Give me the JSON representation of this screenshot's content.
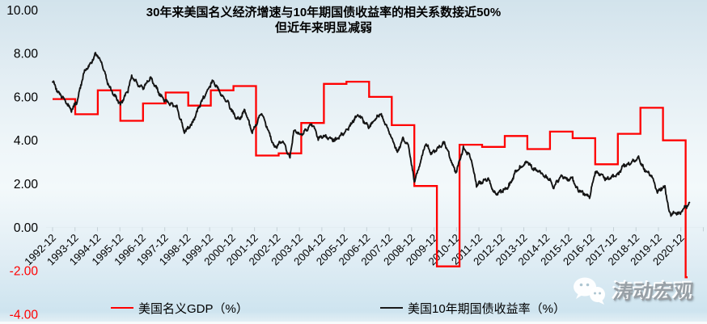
{
  "title": {
    "line1": "30年来美国名义经济增速与10年期国债收益率的相关系数接近50%",
    "line2": "但近年来明显减弱"
  },
  "legend": [
    {
      "label": "美国名义GDP（%）",
      "color": "#ff0000"
    },
    {
      "label": "美国10年期国债收益率（%）",
      "color": "#1a1a1a"
    }
  ],
  "watermark": {
    "icon": "wechat-icon",
    "text": "涛动宏观"
  },
  "chart_data": {
    "type": "line",
    "title": "30年来美国名义经济增速与10年期国债收益率的相关系数接近50% 但近年来明显减弱",
    "grid": "off",
    "legend_position": "bottom",
    "y_axis": {
      "range": [
        -4,
        10
      ],
      "tick_step": 2,
      "ticks": [
        {
          "label": "10.00",
          "value": 10
        },
        {
          "label": "8.00",
          "value": 8
        },
        {
          "label": "6.00",
          "value": 6
        },
        {
          "label": "4.00",
          "value": 4
        },
        {
          "label": "2.00",
          "value": 2
        },
        {
          "label": "0.00",
          "value": 0
        },
        {
          "label": "-2.00",
          "value": -2
        },
        {
          "label": "-4.00",
          "value": -4
        }
      ],
      "positive_tick_color": "#000000",
      "negative_tick_color": "#ff0000"
    },
    "x_axis": {
      "labels": [
        "1992-12",
        "1993-12",
        "1994-12",
        "1995-12",
        "1996-12",
        "1997-12",
        "1998-12",
        "1999-12",
        "2000-12",
        "2001-12",
        "2002-12",
        "2003-12",
        "2004-12",
        "2005-12",
        "2006-12",
        "2007-12",
        "2008-12",
        "2009-12",
        "2010-12",
        "2011-12",
        "2012-12",
        "2013-12",
        "2014-12",
        "2015-12",
        "2016-12",
        "2017-12",
        "2018-12",
        "2019-12",
        "2020-12"
      ],
      "label_rotation_deg": 45
    },
    "series": [
      {
        "name": "美国名义GDP（%）",
        "style": "step",
        "color": "#ff0000",
        "years": [
          1992,
          1993,
          1994,
          1995,
          1996,
          1997,
          1998,
          1999,
          2000,
          2001,
          2002,
          2003,
          2004,
          2005,
          2006,
          2007,
          2008,
          2009,
          2010,
          2011,
          2012,
          2013,
          2014,
          2015,
          2016,
          2017,
          2018,
          2019,
          2020
        ],
        "values": [
          5.9,
          5.2,
          6.3,
          4.9,
          5.7,
          6.2,
          5.6,
          6.3,
          6.5,
          3.3,
          3.4,
          4.8,
          6.6,
          6.7,
          6.0,
          4.7,
          1.9,
          -1.8,
          3.8,
          3.7,
          4.2,
          3.6,
          4.4,
          4.1,
          2.9,
          4.3,
          5.5,
          4.0,
          -2.3
        ]
      },
      {
        "name": "美国10年期国债收益率（%）",
        "style": "noisy-line",
        "color": "#141414",
        "x_unit": "months since 1992-12",
        "points": [
          [
            0,
            6.75
          ],
          [
            3,
            6.2
          ],
          [
            6,
            5.9
          ],
          [
            10,
            5.4
          ],
          [
            13,
            5.8
          ],
          [
            17,
            7.2
          ],
          [
            20,
            7.5
          ],
          [
            23,
            8.0
          ],
          [
            26,
            7.6
          ],
          [
            30,
            6.45
          ],
          [
            36,
            5.65
          ],
          [
            40,
            6.3
          ],
          [
            42,
            6.95
          ],
          [
            45,
            6.6
          ],
          [
            48,
            6.4
          ],
          [
            52,
            6.9
          ],
          [
            57,
            6.1
          ],
          [
            60,
            5.8
          ],
          [
            64,
            5.6
          ],
          [
            66,
            5.5
          ],
          [
            70,
            4.4
          ],
          [
            74,
            4.75
          ],
          [
            78,
            5.6
          ],
          [
            80,
            5.95
          ],
          [
            85,
            6.75
          ],
          [
            90,
            6.05
          ],
          [
            93,
            5.75
          ],
          [
            96,
            5.2
          ],
          [
            99,
            4.95
          ],
          [
            102,
            5.4
          ],
          [
            106,
            4.35
          ],
          [
            111,
            5.3
          ],
          [
            115,
            4.3
          ],
          [
            118,
            3.65
          ],
          [
            122,
            4.0
          ],
          [
            126,
            3.2
          ],
          [
            128,
            4.45
          ],
          [
            132,
            4.25
          ],
          [
            138,
            4.75
          ],
          [
            141,
            4.1
          ],
          [
            144,
            4.2
          ],
          [
            150,
            4.0
          ],
          [
            156,
            4.45
          ],
          [
            162,
            5.2
          ],
          [
            168,
            4.6
          ],
          [
            174,
            5.25
          ],
          [
            178,
            4.5
          ],
          [
            180,
            4.1
          ],
          [
            183,
            3.45
          ],
          [
            186,
            4.1
          ],
          [
            189,
            3.7
          ],
          [
            192,
            2.1
          ],
          [
            195,
            2.9
          ],
          [
            198,
            3.9
          ],
          [
            201,
            3.4
          ],
          [
            204,
            3.6
          ],
          [
            208,
            3.9
          ],
          [
            214,
            2.5
          ],
          [
            218,
            3.65
          ],
          [
            222,
            3.2
          ],
          [
            225,
            1.95
          ],
          [
            228,
            2.1
          ],
          [
            231,
            2.25
          ],
          [
            235,
            1.5
          ],
          [
            240,
            1.75
          ],
          [
            243,
            2.0
          ],
          [
            246,
            2.6
          ],
          [
            252,
            3.0
          ],
          [
            255,
            2.7
          ],
          [
            258,
            2.6
          ],
          [
            261,
            2.35
          ],
          [
            264,
            2.2
          ],
          [
            266,
            1.85
          ],
          [
            270,
            2.4
          ],
          [
            273,
            2.2
          ],
          [
            276,
            2.25
          ],
          [
            278,
            1.8
          ],
          [
            281,
            1.6
          ],
          [
            285,
            1.4
          ],
          [
            288,
            2.55
          ],
          [
            291,
            2.4
          ],
          [
            294,
            2.2
          ],
          [
            297,
            2.35
          ],
          [
            300,
            2.4
          ],
          [
            303,
            2.85
          ],
          [
            306,
            2.9
          ],
          [
            311,
            3.2
          ],
          [
            314,
            2.65
          ],
          [
            318,
            2.35
          ],
          [
            321,
            1.6
          ],
          [
            323,
            1.8
          ],
          [
            325,
            1.85
          ],
          [
            327,
            0.8
          ],
          [
            328,
            0.6
          ],
          [
            330,
            0.68
          ],
          [
            333,
            0.62
          ],
          [
            335,
            0.85
          ],
          [
            338,
            1.1
          ]
        ]
      }
    ]
  }
}
